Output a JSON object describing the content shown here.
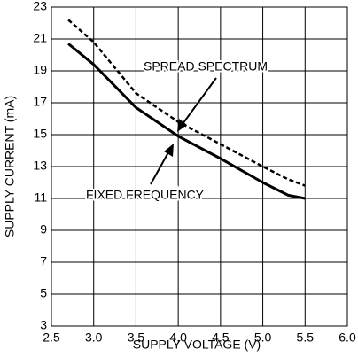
{
  "chart_data": {
    "type": "line",
    "xlabel": "SUPPLY VOLTAGE (V)",
    "ylabel": "SUPPLY CURRENT (mA)",
    "x": [
      2.7,
      3.0,
      3.5,
      4.0,
      4.5,
      5.0,
      5.3,
      5.5
    ],
    "series": [
      {
        "name": "SPREAD SPECTRUM",
        "color": "#000000",
        "line_style": "dashed",
        "values": [
          22.2,
          20.8,
          17.6,
          15.8,
          14.4,
          13.0,
          12.2,
          11.8
        ]
      },
      {
        "name": "FIXED FREQUENCY",
        "color": "#000000",
        "line_style": "solid",
        "values": [
          20.7,
          19.4,
          16.7,
          14.9,
          13.5,
          12.0,
          11.2,
          11.0
        ]
      }
    ],
    "xlim": [
      2.5,
      6.0
    ],
    "xticks": [
      2.5,
      {
        "value": 3,
        "label": "3.0"
      },
      3.5,
      {
        "value": 4,
        "label": "4.0"
      },
      4.5,
      {
        "value": 5,
        "label": "5.0"
      },
      5.5,
      {
        "value": 6,
        "label": "6.0"
      }
    ],
    "ylim": [
      3,
      23
    ],
    "yticks": [
      3,
      5,
      7,
      9,
      11,
      13,
      15,
      17,
      19,
      21,
      23
    ],
    "grid": true
  }
}
